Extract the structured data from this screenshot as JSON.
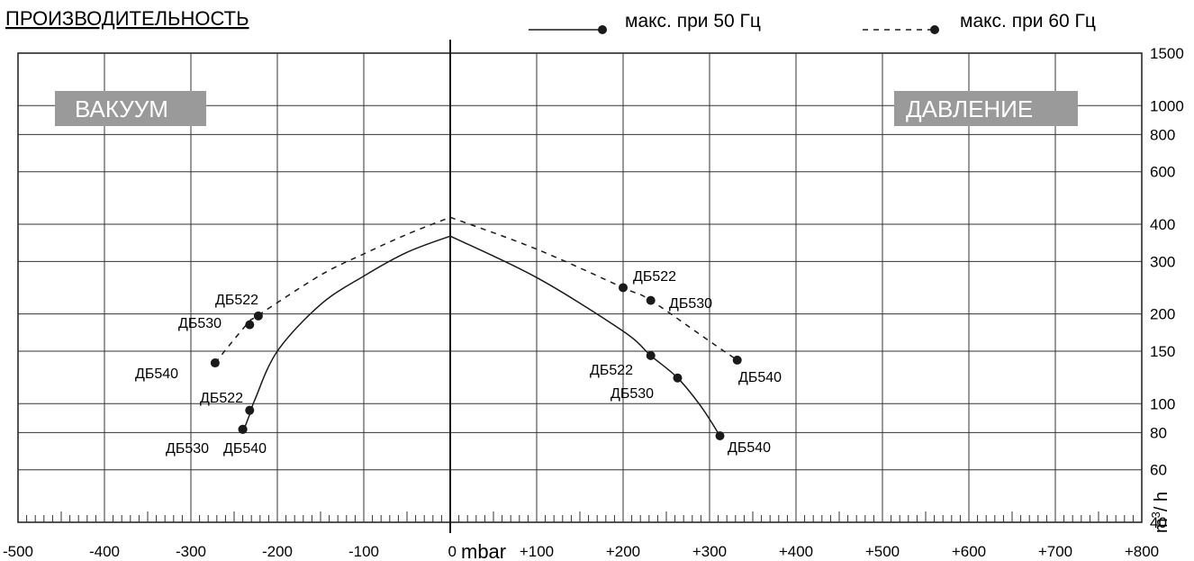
{
  "chart_data": {
    "type": "line",
    "title": "ПРОИЗВОДИТЕЛЬНОСТЬ",
    "x_unit": "mbar",
    "y_unit": "m³/h",
    "y_unit_base": "m",
    "y_unit_sup": "3",
    "y_unit_rest": "/ h",
    "xlim": [
      -500,
      800
    ],
    "ylim": [
      40,
      1500
    ],
    "y_scale": "log",
    "grid": true,
    "legend_position": "top-right",
    "region_labels": {
      "left": "ВАКУУМ",
      "right": "ДАВЛЕНИЕ"
    },
    "x_ticks": [
      {
        "value": -500,
        "label": "-500"
      },
      {
        "value": -400,
        "label": "-400"
      },
      {
        "value": -300,
        "label": "-300"
      },
      {
        "value": -200,
        "label": "-200"
      },
      {
        "value": -100,
        "label": "-100"
      },
      {
        "value": 0,
        "label": "0"
      },
      {
        "value": 100,
        "label": "+100"
      },
      {
        "value": 200,
        "label": "+200"
      },
      {
        "value": 300,
        "label": "+300"
      },
      {
        "value": 400,
        "label": "+400"
      },
      {
        "value": 500,
        "label": "+500"
      },
      {
        "value": 600,
        "label": "+600"
      },
      {
        "value": 700,
        "label": "+700"
      },
      {
        "value": 800,
        "label": "+800"
      }
    ],
    "y_ticks": [
      {
        "value": 40,
        "label": "40"
      },
      {
        "value": 60,
        "label": "60"
      },
      {
        "value": 80,
        "label": "80"
      },
      {
        "value": 100,
        "label": "100"
      },
      {
        "value": 150,
        "label": "150"
      },
      {
        "value": 200,
        "label": "200"
      },
      {
        "value": 300,
        "label": "300"
      },
      {
        "value": 400,
        "label": "400"
      },
      {
        "value": 600,
        "label": "600"
      },
      {
        "value": 800,
        "label": "800"
      },
      {
        "value": 1000,
        "label": "1000"
      },
      {
        "value": 1500,
        "label": "1500"
      }
    ],
    "series": [
      {
        "name": "макс. при 50 Гц",
        "style": "solid",
        "color": "#1a1a1a",
        "vacuum_curve": [
          [
            -240,
            80
          ],
          [
            -232,
            92
          ],
          [
            -226,
            103
          ],
          [
            -200,
            150
          ],
          [
            -150,
            215
          ],
          [
            -100,
            268
          ],
          [
            -50,
            322
          ],
          [
            0,
            365
          ]
        ],
        "pressure_curve": [
          [
            0,
            365
          ],
          [
            100,
            265
          ],
          [
            200,
            175
          ],
          [
            232,
            145
          ],
          [
            263,
            122
          ],
          [
            290,
            98
          ],
          [
            312,
            78
          ]
        ],
        "points": [
          {
            "name": "ДБ522",
            "x": -232,
            "y": 95
          },
          {
            "name": "ДБ530",
            "x": -240,
            "y": 82
          },
          {
            "name": "ДБ540",
            "x": -240,
            "y": 82
          },
          {
            "name": "ДБ522",
            "x": 232,
            "y": 145
          },
          {
            "name": "ДБ530",
            "x": 263,
            "y": 122
          },
          {
            "name": "ДБ540",
            "x": 312,
            "y": 78
          }
        ]
      },
      {
        "name": "макс. при 60 Гц",
        "style": "dashed",
        "color": "#1a1a1a",
        "vacuum_curve": [
          [
            -272,
            137
          ],
          [
            -235,
            185
          ],
          [
            -222,
            198
          ],
          [
            -150,
            270
          ],
          [
            -100,
            318
          ],
          [
            -50,
            370
          ],
          [
            0,
            422
          ]
        ],
        "pressure_curve": [
          [
            0,
            422
          ],
          [
            100,
            330
          ],
          [
            200,
            245
          ],
          [
            232,
            222
          ],
          [
            300,
            162
          ],
          [
            332,
            140
          ]
        ],
        "points": [
          {
            "name": "ДБ522",
            "x": -222,
            "y": 197
          },
          {
            "name": "ДБ530",
            "x": -232,
            "y": 184
          },
          {
            "name": "ДБ540",
            "x": -272,
            "y": 137
          },
          {
            "name": "ДБ522",
            "x": 200,
            "y": 245
          },
          {
            "name": "ДБ530",
            "x": 232,
            "y": 222
          },
          {
            "name": "ДБ540",
            "x": 332,
            "y": 140
          }
        ]
      }
    ]
  }
}
